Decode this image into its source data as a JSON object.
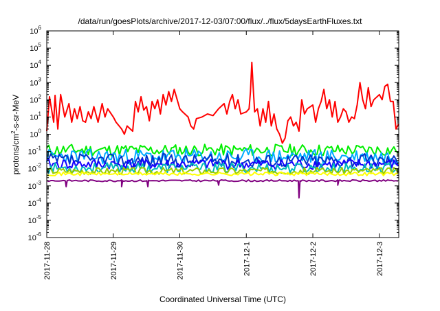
{
  "chart_data": {
    "type": "line",
    "title": "/data/run/goesPlots/archive/2017-12-03/07:00/flux/../flux/5daysEarthFluxes.txt",
    "xlabel": "Coordinated Universal Time (UTC)",
    "ylabel_parts": {
      "base": "protons/cm",
      "sup": "2",
      "rest": "-s-sr-MeV"
    },
    "y_scale": "log",
    "ylim": [
      1e-06,
      1000000.0
    ],
    "y_ticks": [
      {
        "value": 1e-06,
        "base": "10",
        "exp": "-6"
      },
      {
        "value": 1e-05,
        "base": "10",
        "exp": "-5"
      },
      {
        "value": 0.0001,
        "base": "10",
        "exp": "-4"
      },
      {
        "value": 0.001,
        "base": "10",
        "exp": "-3"
      },
      {
        "value": 0.01,
        "base": "10",
        "exp": "-2"
      },
      {
        "value": 0.1,
        "base": "10",
        "exp": "-1"
      },
      {
        "value": 1,
        "base": "10",
        "exp": "0"
      },
      {
        "value": 10,
        "base": "10",
        "exp": "1"
      },
      {
        "value": 100,
        "base": "10",
        "exp": "2"
      },
      {
        "value": 1000,
        "base": "10",
        "exp": "3"
      },
      {
        "value": 10000,
        "base": "10",
        "exp": "4"
      },
      {
        "value": 100000,
        "base": "10",
        "exp": "5"
      },
      {
        "value": 1000000,
        "base": "10",
        "exp": "6"
      }
    ],
    "x_range": [
      "2017-11-28T00:00",
      "2017-12-03T07:00"
    ],
    "x_ticks": [
      "2017-11-28",
      "2017-11-29",
      "2017-11-30",
      "2017-12-1",
      "2017-12-2",
      "2017-12-3"
    ],
    "x_tick_dates": [
      "2017-11-28T00:00",
      "2017-11-29T00:00",
      "2017-11-30T00:00",
      "2017-12-01T00:00",
      "2017-12-02T00:00",
      "2017-12-03T00:00"
    ],
    "grid": false,
    "legend": "none",
    "series": [
      {
        "color": "#ff0000",
        "points": [
          [
            "2017-11-28T00:00",
            1.5
          ],
          [
            "2017-11-28T01:00",
            150
          ],
          [
            "2017-11-28T02:30",
            5
          ],
          [
            "2017-11-28T03:00",
            180
          ],
          [
            "2017-11-28T04:00",
            2
          ],
          [
            "2017-11-28T05:00",
            200
          ],
          [
            "2017-11-28T06:30",
            10
          ],
          [
            "2017-11-28T08:00",
            60
          ],
          [
            "2017-11-28T09:00",
            5
          ],
          [
            "2017-11-28T10:00",
            30
          ],
          [
            "2017-11-28T11:00",
            8
          ],
          [
            "2017-11-28T12:00",
            40
          ],
          [
            "2017-11-28T13:00",
            6
          ],
          [
            "2017-11-28T14:00",
            5
          ],
          [
            "2017-11-28T15:00",
            20
          ],
          [
            "2017-11-28T16:00",
            8
          ],
          [
            "2017-11-28T17:00",
            40
          ],
          [
            "2017-11-28T18:30",
            5
          ],
          [
            "2017-11-28T20:00",
            60
          ],
          [
            "2017-11-28T21:00",
            10
          ],
          [
            "2017-11-28T22:00",
            30
          ],
          [
            "2017-11-29T00:00",
            10
          ],
          [
            "2017-11-29T01:00",
            5
          ],
          [
            "2017-11-29T03:00",
            2
          ],
          [
            "2017-11-29T04:00",
            1
          ],
          [
            "2017-11-29T05:00",
            3
          ],
          [
            "2017-11-29T07:00",
            1.5
          ],
          [
            "2017-11-29T08:00",
            80
          ],
          [
            "2017-11-29T09:00",
            20
          ],
          [
            "2017-11-29T10:00",
            150
          ],
          [
            "2017-11-29T11:00",
            25
          ],
          [
            "2017-11-29T12:00",
            40
          ],
          [
            "2017-11-29T13:00",
            6
          ],
          [
            "2017-11-29T14:00",
            80
          ],
          [
            "2017-11-29T15:00",
            30
          ],
          [
            "2017-11-29T16:00",
            100
          ],
          [
            "2017-11-29T17:00",
            15
          ],
          [
            "2017-11-29T18:00",
            200
          ],
          [
            "2017-11-29T19:00",
            50
          ],
          [
            "2017-11-29T20:00",
            300
          ],
          [
            "2017-11-29T21:00",
            80
          ],
          [
            "2017-11-29T22:00",
            400
          ],
          [
            "2017-11-30T00:00",
            30
          ],
          [
            "2017-11-30T01:00",
            20
          ],
          [
            "2017-11-30T03:00",
            10
          ],
          [
            "2017-11-30T04:00",
            3
          ],
          [
            "2017-11-30T05:00",
            2
          ],
          [
            "2017-11-30T06:00",
            8
          ],
          [
            "2017-11-30T08:00",
            10
          ],
          [
            "2017-11-30T10:00",
            15
          ],
          [
            "2017-11-30T12:00",
            12
          ],
          [
            "2017-11-30T14:00",
            30
          ],
          [
            "2017-11-30T16:00",
            60
          ],
          [
            "2017-11-30T17:00",
            15
          ],
          [
            "2017-11-30T18:00",
            80
          ],
          [
            "2017-11-30T19:00",
            200
          ],
          [
            "2017-11-30T20:00",
            30
          ],
          [
            "2017-11-30T21:00",
            100
          ],
          [
            "2017-11-30T22:00",
            15
          ],
          [
            "2017-12-01T00:00",
            20
          ],
          [
            "2017-12-01T01:00",
            30
          ],
          [
            "2017-12-01T01:30",
            300
          ],
          [
            "2017-12-01T02:00",
            15000
          ],
          [
            "2017-12-01T02:30",
            500
          ],
          [
            "2017-12-01T03:00",
            20
          ],
          [
            "2017-12-01T04:00",
            30
          ],
          [
            "2017-12-01T05:00",
            3
          ],
          [
            "2017-12-01T06:00",
            30
          ],
          [
            "2017-12-01T07:00",
            5
          ],
          [
            "2017-12-01T08:00",
            80
          ],
          [
            "2017-12-01T09:00",
            3
          ],
          [
            "2017-12-01T10:00",
            15
          ],
          [
            "2017-12-01T11:00",
            2
          ],
          [
            "2017-12-01T12:00",
            1
          ],
          [
            "2017-12-01T13:00",
            0.3
          ],
          [
            "2017-12-01T14:00",
            0.6
          ],
          [
            "2017-12-01T15:00",
            6
          ],
          [
            "2017-12-01T16:00",
            10
          ],
          [
            "2017-12-01T17:00",
            3
          ],
          [
            "2017-12-01T18:00",
            5
          ],
          [
            "2017-12-01T19:00",
            1.5
          ],
          [
            "2017-12-01T20:00",
            100
          ],
          [
            "2017-12-01T21:00",
            15
          ],
          [
            "2017-12-01T22:00",
            30
          ],
          [
            "2017-12-02T00:00",
            50
          ],
          [
            "2017-12-02T01:00",
            5
          ],
          [
            "2017-12-02T02:00",
            30
          ],
          [
            "2017-12-02T03:00",
            80
          ],
          [
            "2017-12-02T04:00",
            400
          ],
          [
            "2017-12-02T05:00",
            30
          ],
          [
            "2017-12-02T06:00",
            100
          ],
          [
            "2017-12-02T07:00",
            10
          ],
          [
            "2017-12-02T08:00",
            80
          ],
          [
            "2017-12-02T09:00",
            5
          ],
          [
            "2017-12-02T10:00",
            10
          ],
          [
            "2017-12-02T11:00",
            30
          ],
          [
            "2017-12-02T12:00",
            20
          ],
          [
            "2017-12-02T13:00",
            5
          ],
          [
            "2017-12-02T14:00",
            10
          ],
          [
            "2017-12-02T15:00",
            8
          ],
          [
            "2017-12-02T16:00",
            50
          ],
          [
            "2017-12-02T17:00",
            1000
          ],
          [
            "2017-12-02T18:00",
            100
          ],
          [
            "2017-12-02T19:00",
            30
          ],
          [
            "2017-12-02T20:00",
            500
          ],
          [
            "2017-12-02T21:00",
            40
          ],
          [
            "2017-12-02T22:00",
            100
          ],
          [
            "2017-12-03T00:00",
            200
          ],
          [
            "2017-12-03T01:00",
            100
          ],
          [
            "2017-12-03T02:00",
            600
          ],
          [
            "2017-12-03T03:00",
            800
          ],
          [
            "2017-12-03T04:00",
            80
          ],
          [
            "2017-12-03T05:00",
            80
          ],
          [
            "2017-12-03T06:00",
            2
          ],
          [
            "2017-12-03T07:00",
            4
          ]
        ]
      },
      {
        "color": "#00ee00",
        "base": 0.12,
        "amp": 0.35,
        "seed": 11
      },
      {
        "color": "#00aaff",
        "base": 0.05,
        "amp": 0.45,
        "seed": 23
      },
      {
        "color": "#0033cc",
        "base": 0.03,
        "amp": 0.4,
        "seed": 37
      },
      {
        "color": "#1500ff",
        "base": 0.018,
        "amp": 0.3,
        "seed": 41
      },
      {
        "color": "#00bbbb",
        "base": 0.011,
        "amp": 0.3,
        "seed": 53
      },
      {
        "color": "#99cc00",
        "base": 0.0075,
        "amp": 0.2,
        "seed": 67
      },
      {
        "color": "#ffff00",
        "base": 0.005,
        "amp": 0.1,
        "seed": 71
      },
      {
        "color": "#800080",
        "base": 0.002,
        "amp": 0.05,
        "seed": 83,
        "dips": [
          [
            "2017-11-28T07:00",
            0.0009
          ],
          [
            "2017-11-29T03:00",
            0.0009
          ],
          [
            "2017-11-29T12:30",
            0.0009
          ],
          [
            "2017-11-30T14:00",
            0.0011
          ],
          [
            "2017-12-01T19:00",
            0.0002
          ],
          [
            "2017-12-02T09:00",
            0.0011
          ]
        ]
      }
    ]
  }
}
